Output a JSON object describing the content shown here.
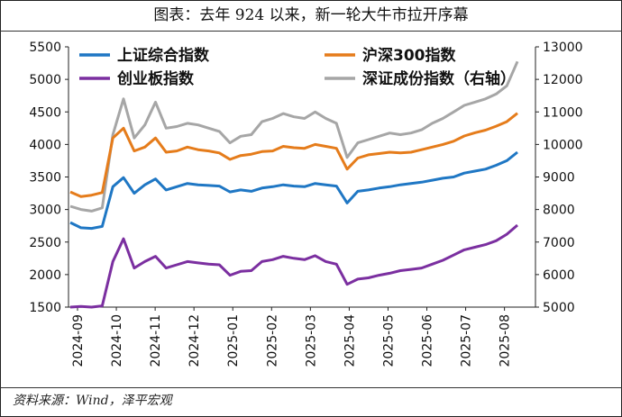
{
  "title": "图表：去年 924 以来，新一轮大牛市拉开序幕",
  "source": "资料来源：Wind，泽平宏观",
  "chart_data": {
    "type": "line",
    "x_tick_labels": [
      "2024-09",
      "2024-10",
      "2024-11",
      "2024-12",
      "2025-01",
      "2025-02",
      "2025-03",
      "2025-04",
      "2025-05",
      "2025-06",
      "2025-07",
      "2025-08"
    ],
    "left_axis": {
      "ylim": [
        1500,
        5500
      ],
      "ticks": [
        1500,
        2000,
        2500,
        3000,
        3500,
        4000,
        4500,
        5000,
        5500
      ]
    },
    "right_axis": {
      "ylim": [
        5000,
        13000
      ],
      "ticks": [
        5000,
        6000,
        7000,
        8000,
        9000,
        10000,
        11000,
        12000,
        13000
      ]
    },
    "legend_placement": "top",
    "grid": false,
    "series": [
      {
        "name": "上证综合指数",
        "axis": "left",
        "color": "#1f77c4",
        "values": [
          2800,
          2720,
          2710,
          2740,
          3350,
          3490,
          3250,
          3380,
          3470,
          3300,
          3350,
          3400,
          3380,
          3370,
          3360,
          3270,
          3300,
          3280,
          3330,
          3350,
          3380,
          3360,
          3350,
          3400,
          3380,
          3360,
          3100,
          3280,
          3300,
          3330,
          3350,
          3380,
          3400,
          3420,
          3450,
          3480,
          3500,
          3560,
          3590,
          3620,
          3680,
          3750,
          3880
        ]
      },
      {
        "name": "沪深300指数",
        "axis": "left",
        "color": "#e57c1b",
        "values": [
          3270,
          3200,
          3220,
          3260,
          4100,
          4250,
          3900,
          3960,
          4100,
          3880,
          3900,
          3960,
          3920,
          3900,
          3870,
          3770,
          3830,
          3850,
          3890,
          3900,
          3970,
          3950,
          3940,
          4000,
          3970,
          3940,
          3620,
          3790,
          3840,
          3860,
          3880,
          3870,
          3880,
          3920,
          3960,
          4000,
          4050,
          4130,
          4180,
          4220,
          4280,
          4350,
          4480
        ]
      },
      {
        "name": "创业板指数",
        "axis": "left",
        "color": "#7b2fa0",
        "values": [
          1500,
          1510,
          1500,
          1520,
          2200,
          2550,
          2100,
          2200,
          2280,
          2100,
          2150,
          2200,
          2180,
          2160,
          2150,
          1990,
          2050,
          2060,
          2200,
          2230,
          2280,
          2250,
          2230,
          2290,
          2200,
          2160,
          1850,
          1930,
          1950,
          1990,
          2020,
          2060,
          2080,
          2100,
          2160,
          2220,
          2300,
          2380,
          2420,
          2460,
          2520,
          2620,
          2760
        ]
      },
      {
        "name": "深证成份指数（右轴）",
        "axis": "right",
        "color": "#a6a6a6",
        "values": [
          8100,
          8000,
          7950,
          8050,
          10300,
          11400,
          10200,
          10600,
          11300,
          10500,
          10550,
          10650,
          10600,
          10500,
          10400,
          10050,
          10250,
          10300,
          10700,
          10800,
          10950,
          10850,
          10800,
          11000,
          10800,
          10650,
          9600,
          10050,
          10150,
          10250,
          10350,
          10300,
          10350,
          10450,
          10650,
          10800,
          11000,
          11200,
          11300,
          11400,
          11550,
          11800,
          12550
        ]
      }
    ]
  }
}
